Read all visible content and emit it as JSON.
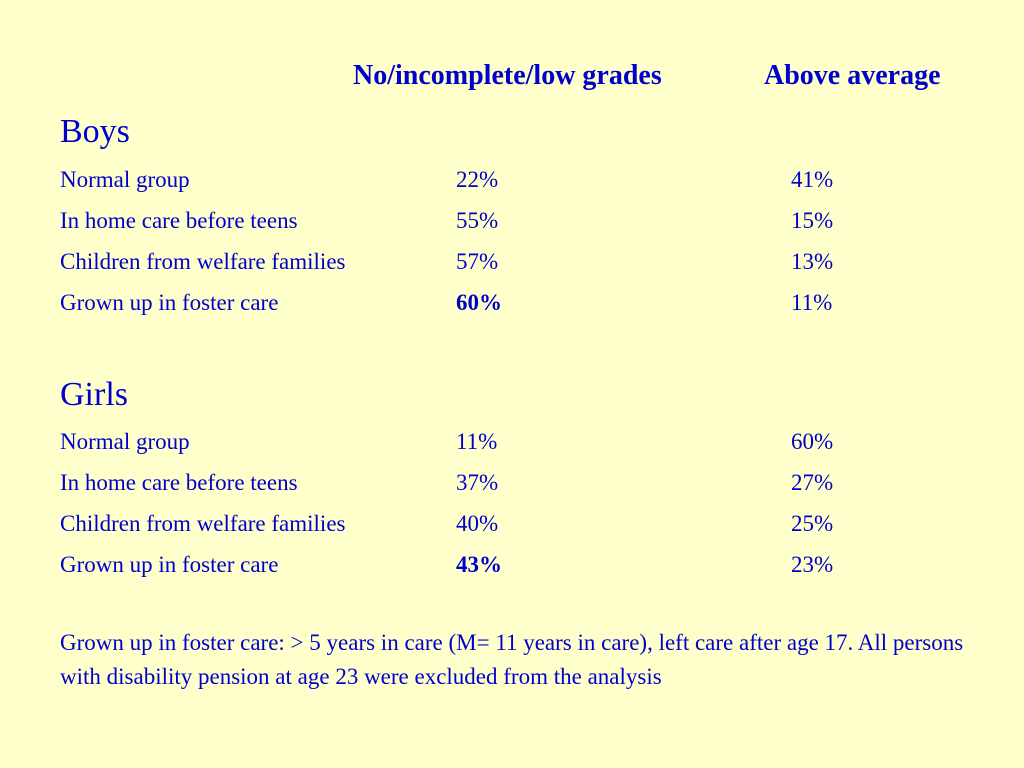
{
  "header": {
    "col1": "No/incomplete/low grades",
    "col2": "Above average"
  },
  "groups": [
    {
      "title": "Boys",
      "rows": [
        {
          "label": "Normal group",
          "v1": "22%",
          "v2": "41%",
          "v1_bold": false
        },
        {
          "label": "In home care before teens",
          "v1": "55%",
          "v2": "15%",
          "v1_bold": false
        },
        {
          "label": "Children from welfare families",
          "v1": "57%",
          "v2": "13%",
          "v1_bold": false
        },
        {
          "label": "Grown up in foster care",
          "v1": "60%",
          "v2": "11%",
          "v1_bold": true
        }
      ]
    },
    {
      "title": "Girls",
      "rows": [
        {
          "label": "Normal group",
          "v1": "11%",
          "v2": "60%",
          "v1_bold": false
        },
        {
          "label": "In home care before teens",
          "v1": "37%",
          "v2": "27%",
          "v1_bold": false
        },
        {
          "label": "Children from welfare families",
          "v1": "40%",
          "v2": "25%",
          "v1_bold": false
        },
        {
          "label": "Grown up in foster care",
          "v1": "43%",
          "v2": "23%",
          "v1_bold": true
        }
      ]
    }
  ],
  "note": "Grown up in foster care: > 5 years in care (M= 11 years in care), left care after age 17. All persons with disability pension at age 23 were excluded from the analysis",
  "colors": {
    "background": "#ffffcc",
    "text": "#0000cc"
  }
}
